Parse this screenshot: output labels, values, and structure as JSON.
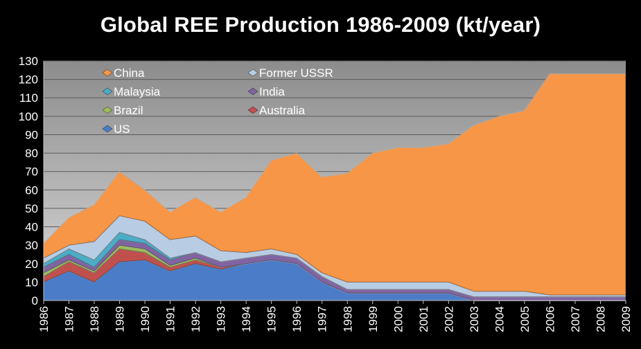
{
  "chart_data": {
    "type": "area",
    "stacked": true,
    "title": "Global REE Production 1986-2009 (kt/year)",
    "xlabel": "",
    "ylabel": "",
    "ylim": [
      0,
      130
    ],
    "ytick_step": 10,
    "legend_position": "top-left inside plot",
    "categories": [
      "1986",
      "1987",
      "1988",
      "1989",
      "1990",
      "1991",
      "1992",
      "1993",
      "1994",
      "1995",
      "1996",
      "1997",
      "1998",
      "1999",
      "2000",
      "2001",
      "2002",
      "2003",
      "2004",
      "2005",
      "2006",
      "2007",
      "2008",
      "2009"
    ],
    "series": [
      {
        "name": "US",
        "color": "#4a7cc7",
        "values": [
          10,
          16,
          10,
          21,
          22,
          16,
          20,
          17,
          20,
          22,
          20,
          10,
          4,
          4,
          4,
          4,
          4,
          0,
          0,
          0,
          0,
          0,
          0,
          0
        ]
      },
      {
        "name": "Australia",
        "color": "#c0504d",
        "values": [
          3,
          5,
          5,
          7,
          4,
          2,
          2,
          1,
          0,
          0,
          0,
          0,
          0,
          0,
          0,
          0,
          0,
          0,
          0,
          0,
          0,
          0,
          0,
          0
        ]
      },
      {
        "name": "Brazil",
        "color": "#9bbb59",
        "values": [
          2,
          1,
          1,
          2,
          2,
          1,
          1,
          0,
          0,
          0,
          0,
          0,
          0,
          0,
          0,
          0,
          0,
          0,
          0,
          0,
          0,
          0,
          0,
          0
        ]
      },
      {
        "name": "India",
        "color": "#8064a2",
        "values": [
          3,
          3,
          2,
          3,
          3,
          3,
          3,
          3,
          3,
          3,
          3,
          3,
          2,
          2,
          2,
          2,
          2,
          2,
          2,
          2,
          2,
          2,
          2,
          2
        ]
      },
      {
        "name": "Malaysia",
        "color": "#4bacc6",
        "values": [
          2,
          3,
          4,
          4,
          2,
          1,
          0,
          0,
          0,
          0,
          0,
          0,
          0,
          0,
          0,
          0,
          0,
          0,
          0,
          0,
          0,
          0,
          0,
          0
        ]
      },
      {
        "name": "Former USSR",
        "color": "#b8cce4",
        "values": [
          3,
          2,
          10,
          9,
          10,
          10,
          9,
          6,
          3,
          3,
          2,
          2,
          4,
          4,
          4,
          4,
          4,
          3,
          3,
          3,
          1,
          1,
          1,
          1
        ]
      },
      {
        "name": "China",
        "color": "#f79646",
        "values": [
          8,
          15,
          20,
          24,
          17,
          15,
          21,
          21,
          30,
          48,
          55,
          52,
          59,
          70,
          73,
          73,
          75,
          90,
          95,
          98,
          120,
          120,
          120,
          120
        ]
      }
    ]
  }
}
